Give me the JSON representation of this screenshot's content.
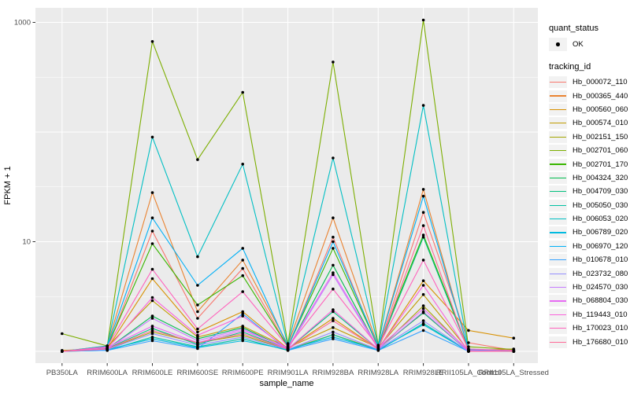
{
  "figure": {
    "y_axis_title": "FPKM + 1",
    "x_axis_title": "sample_name"
  },
  "legend": {
    "quant_status_title": "quant_status",
    "quant_status_items": [
      {
        "label": "OK"
      }
    ],
    "tracking_id_title": "tracking_id"
  },
  "colors": {
    "panel_bg": "#EBEBEB",
    "grid": "#FFFFFF",
    "tick": "#333333",
    "tick_label": "#4D4D4D",
    "point": "#000000",
    "key_bg": "#F2F2F2"
  },
  "chart_data": {
    "type": "line",
    "title": "",
    "xlabel": "sample_name",
    "ylabel": "FPKM + 1",
    "y_scale": "log10",
    "ylim": [
      0.75,
      1300
    ],
    "y_ticks": [
      {
        "value": 1000,
        "label": "1000"
      },
      {
        "value": 10,
        "label": "10"
      }
    ],
    "y_major_gridlines": [
      1,
      10,
      100,
      1000
    ],
    "y_minor_gridlines": [
      3.162,
      31.62,
      316.2
    ],
    "grid": true,
    "legend_position": "right",
    "point_shape": "filled-circle",
    "quant_status_value": "OK",
    "categories": [
      "PB350LA",
      "RRIM600LA",
      "RRIM600LE",
      "RRIM600SE",
      "RRIM600PE",
      "RRIM901LA",
      "RRIM928BA",
      "RRIM928LA",
      "RRIM928LE",
      "RRII105LA_Control",
      "RRII105LA_Stressed"
    ],
    "series": [
      {
        "name": "Hb_000072_110",
        "color": "#F8766D",
        "values": [
          1.0,
          1.06,
          12.5,
          2.0,
          5.7,
          1.1,
          11.0,
          1.06,
          18.5,
          1.2,
          1.02
        ]
      },
      {
        "name": "Hb_000365_440",
        "color": "#EA8331",
        "values": [
          1.0,
          1.12,
          28,
          2.3,
          6.8,
          1.15,
          16.5,
          1.1,
          30,
          1.02,
          1.0
        ]
      },
      {
        "name": "Hb_000560_060",
        "color": "#D89000",
        "values": [
          1.02,
          1.06,
          4.6,
          1.5,
          2.3,
          1.06,
          2.0,
          1.05,
          4.4,
          1.55,
          1.32
        ]
      },
      {
        "name": "Hb_000574_010",
        "color": "#C09B00",
        "values": [
          1.0,
          1.1,
          2.9,
          1.35,
          1.7,
          1.08,
          1.65,
          1.08,
          3.3,
          1.02,
          1.05
        ]
      },
      {
        "name": "Hb_002151_150",
        "color": "#A3A500",
        "values": [
          1.0,
          1.05,
          1.5,
          1.2,
          1.4,
          1.04,
          1.42,
          1.04,
          2.6,
          1.0,
          1.02
        ]
      },
      {
        "name": "Hb_002701_060",
        "color": "#7CAE00",
        "values": [
          1.45,
          1.12,
          670,
          56,
          230,
          1.18,
          435,
          1.14,
          1050,
          1.1,
          1.04
        ]
      },
      {
        "name": "Hb_002701_170",
        "color": "#39B600",
        "values": [
          1.0,
          1.1,
          9.6,
          2.65,
          4.9,
          1.1,
          8.7,
          1.1,
          11.5,
          1.05,
          1.0
        ]
      },
      {
        "name": "Hb_004324_320",
        "color": "#00BB4E",
        "values": [
          1.0,
          1.05,
          2.1,
          1.3,
          1.65,
          1.05,
          6.1,
          1.05,
          2.25,
          1.0,
          1.0
        ]
      },
      {
        "name": "Hb_004709_030",
        "color": "#00BF7D",
        "values": [
          1.0,
          1.06,
          1.62,
          1.16,
          1.5,
          1.05,
          2.3,
          1.05,
          11.0,
          1.02,
          1.0
        ]
      },
      {
        "name": "Hb_005050_030",
        "color": "#00C1A3",
        "values": [
          1.0,
          1.02,
          1.35,
          1.1,
          1.3,
          1.02,
          1.42,
          1.02,
          1.8,
          1.0,
          1.0
        ]
      },
      {
        "name": "Hb_006053_020",
        "color": "#00BFC4",
        "values": [
          1.0,
          1.12,
          90,
          7.3,
          51,
          1.14,
          58,
          1.12,
          175,
          1.04,
          1.0
        ]
      },
      {
        "name": "Hb_006789_020",
        "color": "#00BAE0",
        "values": [
          1.0,
          1.04,
          1.3,
          1.08,
          1.25,
          1.04,
          1.35,
          1.04,
          1.75,
          1.0,
          1.0
        ]
      },
      {
        "name": "Hb_006970_120",
        "color": "#00B0F6",
        "values": [
          1.0,
          1.1,
          16.5,
          4.0,
          8.7,
          1.1,
          10.0,
          1.1,
          26,
          1.04,
          1.0
        ]
      },
      {
        "name": "Hb_010678_010",
        "color": "#35A2FF",
        "values": [
          1.0,
          1.02,
          1.25,
          1.06,
          2.2,
          1.02,
          1.3,
          1.02,
          1.55,
          1.0,
          1.0
        ]
      },
      {
        "name": "Hb_023732_080",
        "color": "#9590FF",
        "values": [
          1.0,
          1.04,
          1.45,
          1.14,
          1.35,
          1.04,
          1.5,
          1.04,
          1.9,
          1.0,
          1.0
        ]
      },
      {
        "name": "Hb_024570_030",
        "color": "#C77CFF",
        "values": [
          1.0,
          1.05,
          2.0,
          1.25,
          1.6,
          1.05,
          5.0,
          1.05,
          2.3,
          1.0,
          1.0
        ]
      },
      {
        "name": "Hb_068804_030",
        "color": "#E76BF3",
        "values": [
          1.0,
          1.08,
          1.7,
          1.2,
          1.55,
          1.08,
          5.2,
          1.08,
          2.45,
          1.02,
          1.0
        ]
      },
      {
        "name": "Hb_119443_010",
        "color": "#FA62DB",
        "values": [
          1.0,
          1.05,
          3.1,
          1.4,
          2.1,
          1.05,
          2.4,
          1.05,
          4.0,
          1.0,
          1.0
        ]
      },
      {
        "name": "Hb_170023_010",
        "color": "#FF62BC",
        "values": [
          1.0,
          1.1,
          5.6,
          1.6,
          3.5,
          1.1,
          3.7,
          1.1,
          6.8,
          1.05,
          1.02
        ]
      },
      {
        "name": "Hb_176680_010",
        "color": "#FF6A98",
        "values": [
          1.0,
          1.05,
          1.55,
          1.2,
          1.45,
          1.05,
          1.9,
          1.05,
          14.0,
          1.0,
          1.0
        ]
      }
    ]
  }
}
